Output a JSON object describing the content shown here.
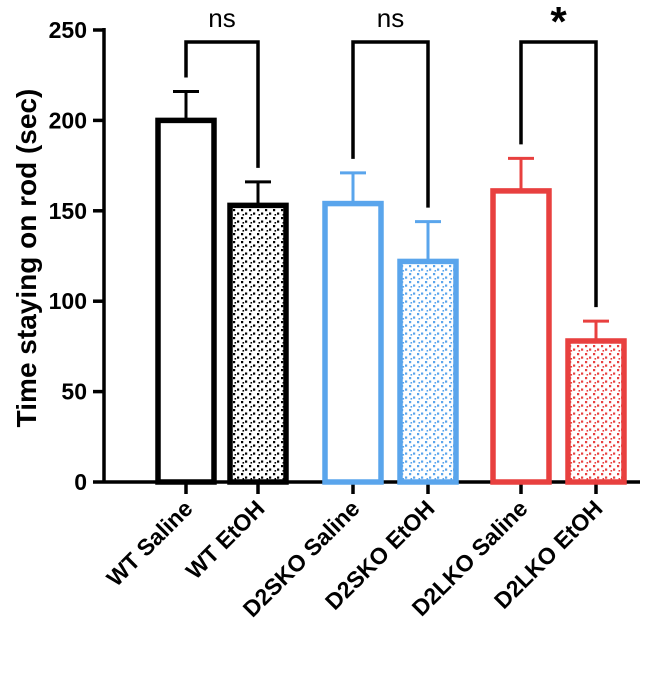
{
  "chart_data": {
    "type": "bar",
    "title": "",
    "xlabel": "",
    "ylabel": "Time staying on rod (sec)",
    "ylim": [
      0,
      250
    ],
    "yticks": [
      0,
      50,
      100,
      150,
      200,
      250
    ],
    "grid": false,
    "categories": [
      "WT Saline",
      "WT EtOH",
      "D2SKO Saline",
      "D2SKO EtOH",
      "D2LKO Saline",
      "D2LKO EtOH"
    ],
    "values": [
      200,
      153,
      154,
      122,
      161,
      78
    ],
    "errors": [
      16,
      13,
      17,
      22,
      18,
      11
    ],
    "colors": [
      "#000000",
      "#000000",
      "#5aa5ec",
      "#5aa5ec",
      "#e8403f",
      "#e8403f"
    ],
    "patterned": [
      false,
      true,
      false,
      true,
      false,
      true
    ],
    "comparisons": [
      {
        "pair": [
          0,
          1
        ],
        "label": "ns"
      },
      {
        "pair": [
          2,
          3
        ],
        "label": "ns"
      },
      {
        "pair": [
          4,
          5
        ],
        "label": "*"
      }
    ]
  }
}
